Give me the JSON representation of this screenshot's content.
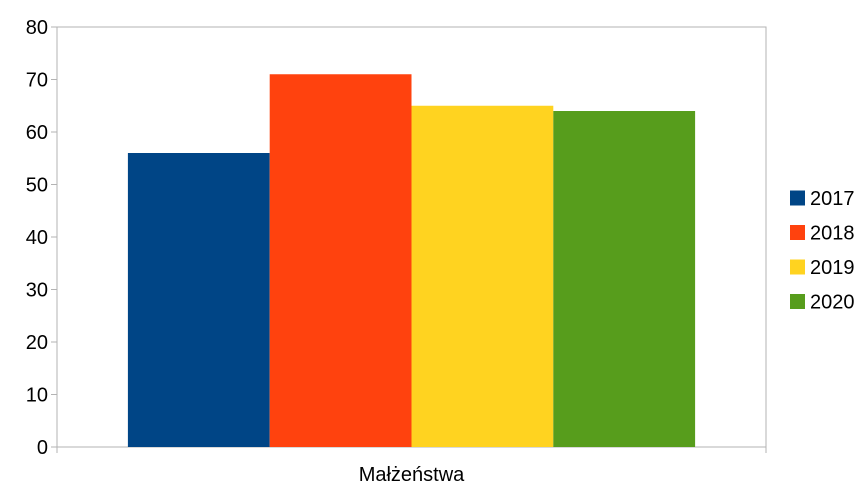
{
  "chart_data": {
    "type": "bar",
    "categories": [
      "Małżeństwa"
    ],
    "series": [
      {
        "name": "2017",
        "values": [
          56
        ],
        "color": "#004586"
      },
      {
        "name": "2018",
        "values": [
          71
        ],
        "color": "#ff420e"
      },
      {
        "name": "2019",
        "values": [
          65
        ],
        "color": "#ffd320"
      },
      {
        "name": "2020",
        "values": [
          64
        ],
        "color": "#579d1c"
      }
    ],
    "yticks": [
      "0",
      "10",
      "20",
      "30",
      "40",
      "50",
      "60",
      "70",
      "80"
    ],
    "ylim": [
      0,
      80
    ],
    "grid": false,
    "legend_position": "right"
  }
}
